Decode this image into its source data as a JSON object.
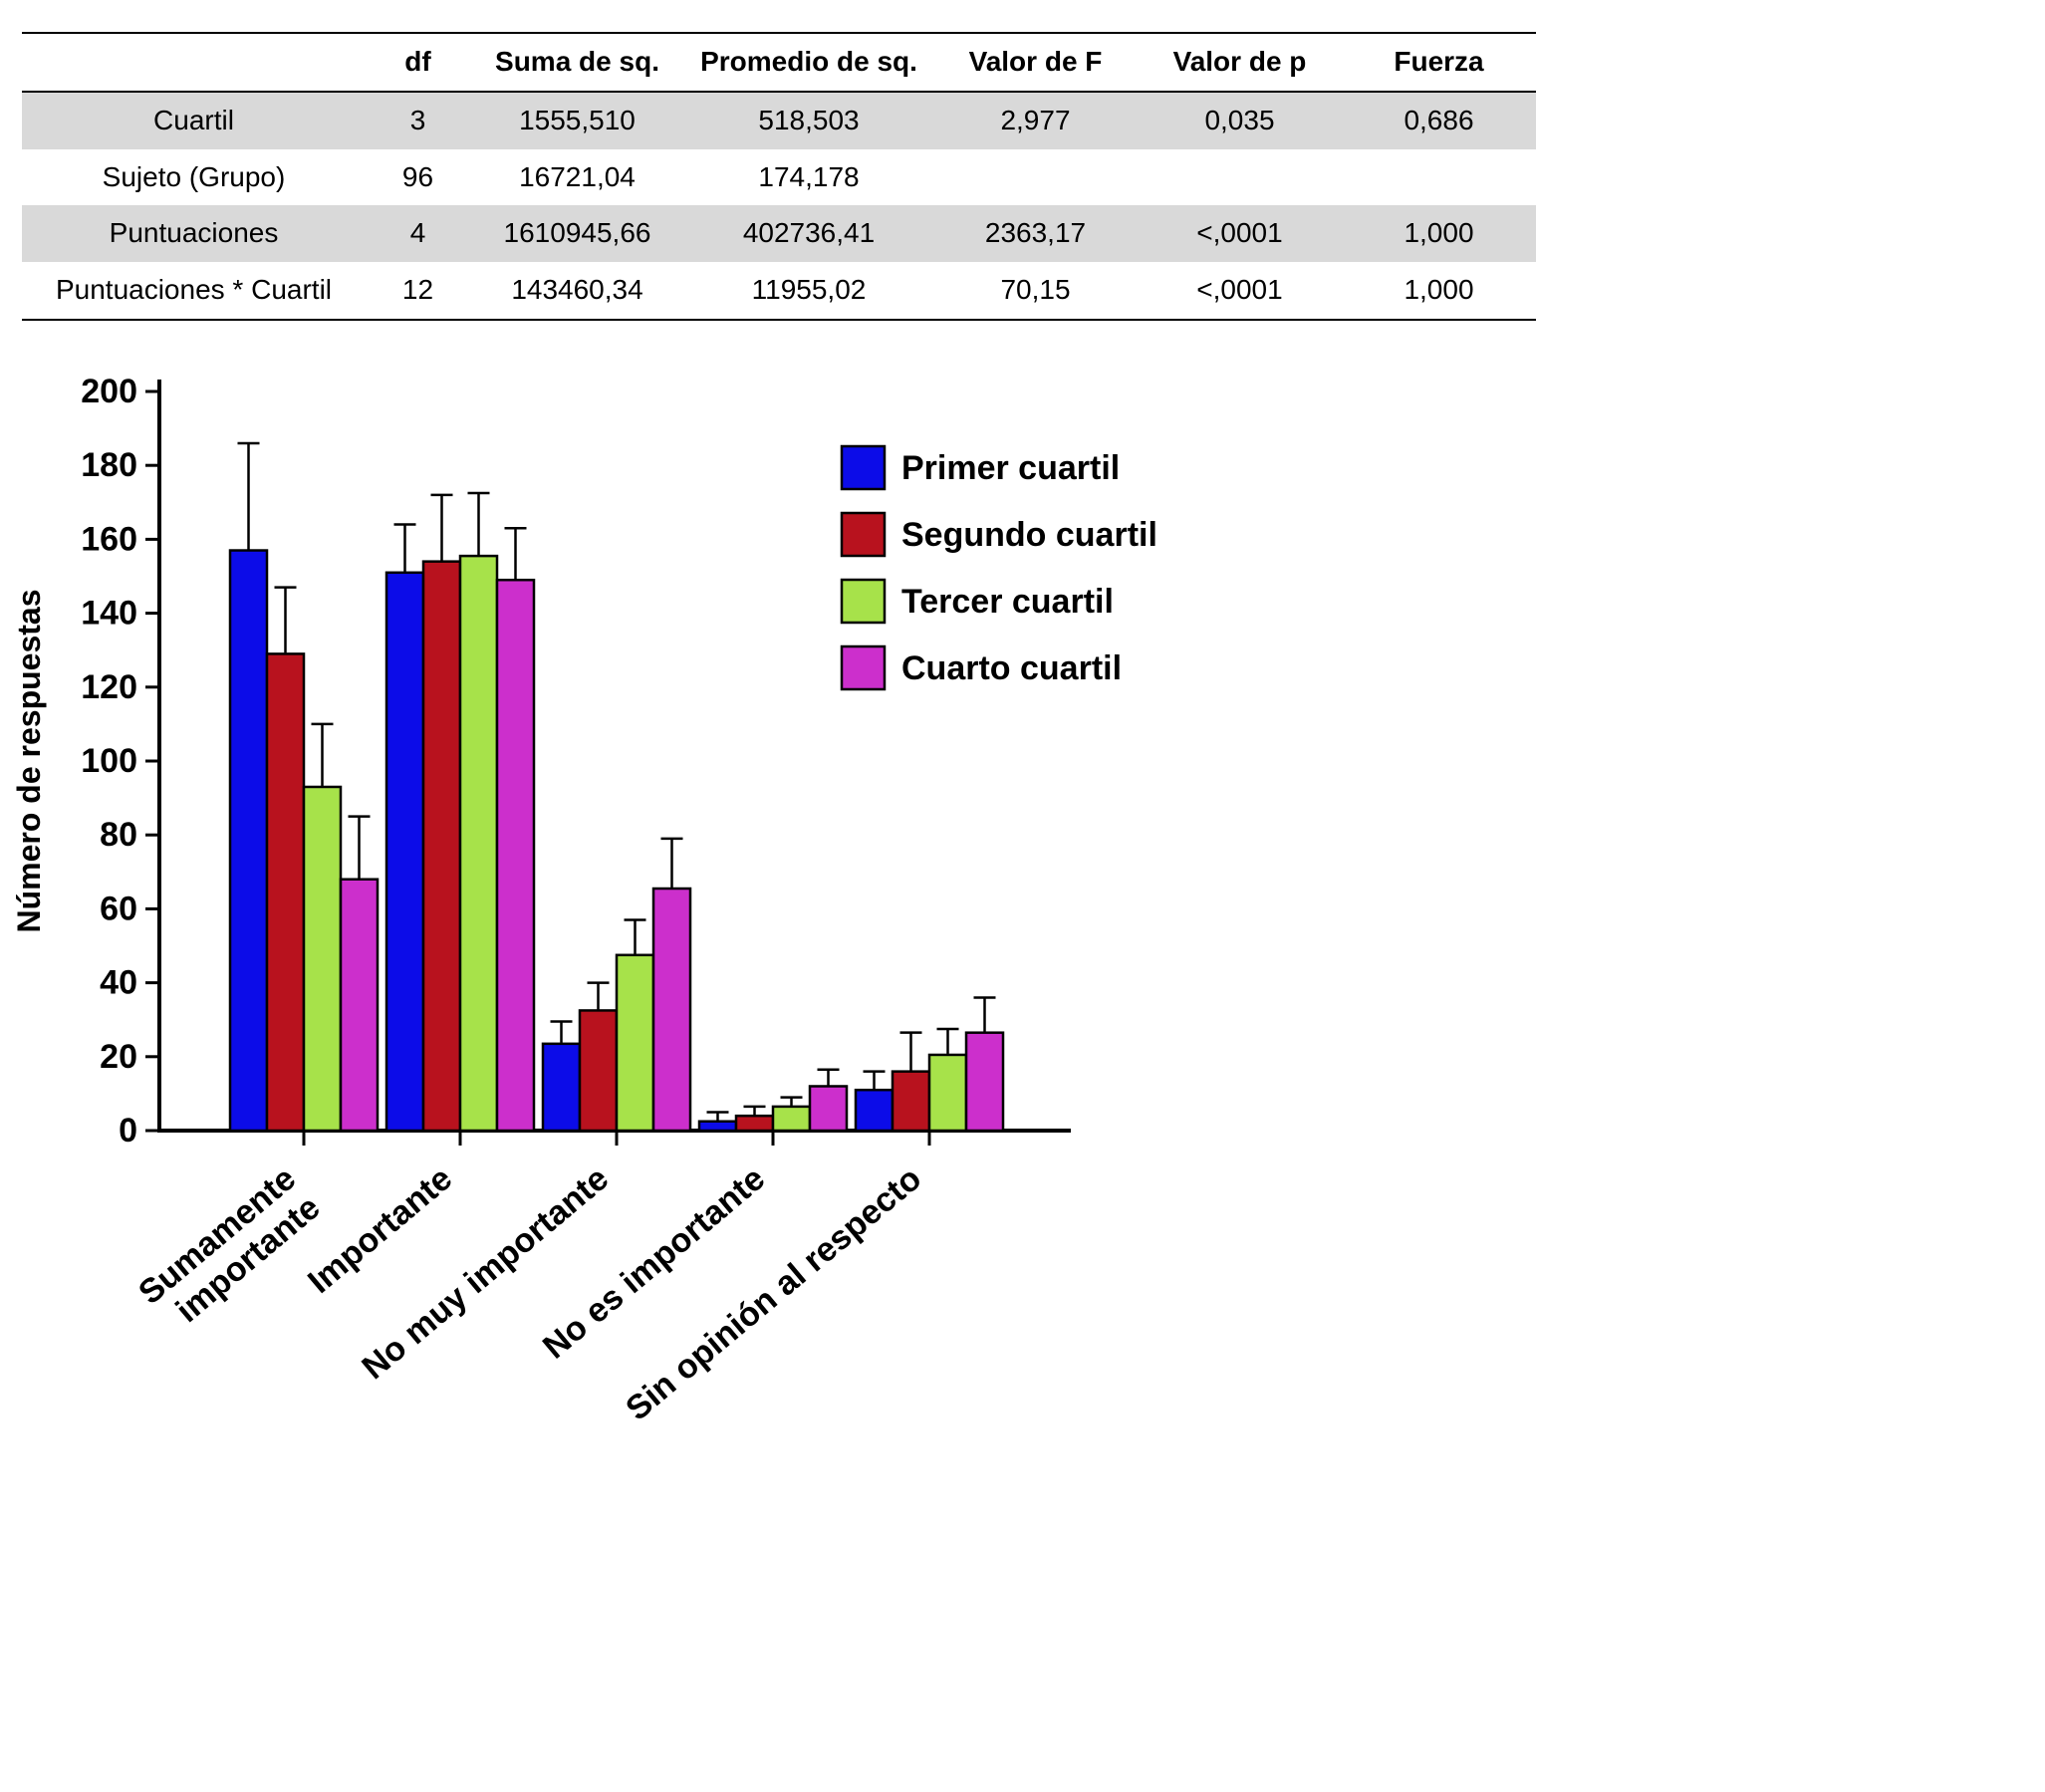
{
  "table": {
    "headers": [
      "",
      "df",
      "Suma de sq.",
      "Promedio de sq.",
      "Valor de F",
      "Valor de p",
      "Fuerza"
    ],
    "rows": [
      {
        "label": "Cuartil",
        "shaded": true,
        "values": [
          "3",
          "1555,510",
          "518,503",
          "2,977",
          "0,035",
          "0,686"
        ]
      },
      {
        "label": "Sujeto (Grupo)",
        "shaded": false,
        "values": [
          "96",
          "16721,04",
          "174,178",
          "",
          "",
          ""
        ]
      },
      {
        "label": "Puntuaciones",
        "shaded": true,
        "values": [
          "4",
          "1610945,66",
          "402736,41",
          "2363,17",
          "<,0001",
          "1,000"
        ]
      },
      {
        "label": "Puntuaciones * Cuartil",
        "shaded": false,
        "values": [
          "12",
          "143460,34",
          "11955,02",
          "70,15",
          "<,0001",
          "1,000"
        ]
      }
    ]
  },
  "chart_data": {
    "type": "bar",
    "title": "",
    "xlabel": "",
    "ylabel": "Número de respuestas",
    "ylim": [
      0,
      200
    ],
    "ytick_step": 20,
    "grid": false,
    "legend_position": "upper-right",
    "categories": [
      "Sumamente\nimportante",
      "Importante",
      "No muy importante",
      "No es importante",
      "Sin opinión al respecto"
    ],
    "series": [
      {
        "name": "Primer cuartil",
        "color": "#0c0ce8",
        "values": [
          157,
          151,
          23.5,
          2.5,
          11
        ],
        "errors": [
          29,
          13,
          6,
          2.5,
          5
        ]
      },
      {
        "name": "Segundo cuartil",
        "color": "#b8121e",
        "values": [
          129,
          154,
          32.5,
          4,
          16
        ],
        "errors": [
          18,
          18,
          7.5,
          2.5,
          10.5
        ]
      },
      {
        "name": "Tercer cuartil",
        "color": "#a7e24a",
        "values": [
          93,
          155.5,
          47.5,
          6.5,
          20.5
        ],
        "errors": [
          17,
          17,
          9.5,
          2.5,
          7
        ]
      },
      {
        "name": "Cuarto cuartil",
        "color": "#cc2fcc",
        "values": [
          68,
          149,
          65.5,
          12,
          26.5
        ],
        "errors": [
          17,
          14,
          13.5,
          4.5,
          9.5
        ]
      }
    ],
    "axis_color": "#000000",
    "bar_border_color": "#000000"
  }
}
